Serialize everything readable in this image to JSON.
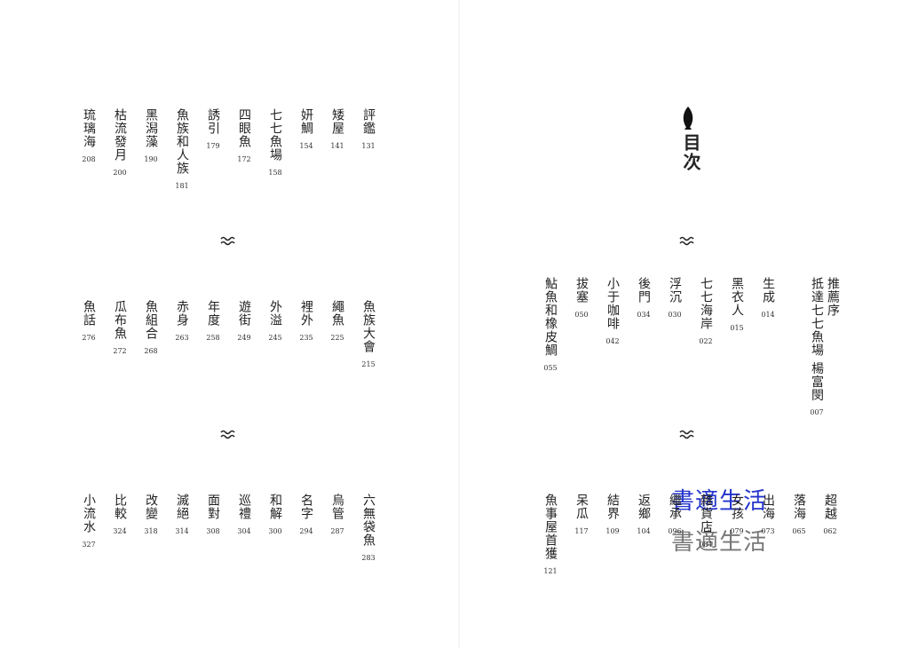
{
  "header": {
    "title": "目次"
  },
  "watermark": [
    "書適生活",
    "書適生活"
  ],
  "sections": [
    {
      "entries": [
        {
          "label": "推薦序",
          "title": "抵達七七魚場 楊富閔",
          "page": "007"
        },
        {
          "title": "生成",
          "page": "014"
        },
        {
          "title": "黑衣人",
          "page": "015"
        },
        {
          "title": "七七海岸",
          "page": "022"
        },
        {
          "title": "浮沉",
          "page": "030"
        },
        {
          "title": "後門",
          "page": "034"
        },
        {
          "title": "小于咖啡",
          "page": "042"
        },
        {
          "title": "拔塞",
          "page": "050"
        },
        {
          "title": "鮎魚和橡皮鯛",
          "page": "055"
        }
      ]
    },
    {
      "entries": [
        {
          "title": "超越",
          "page": "062"
        },
        {
          "title": "落海",
          "page": "065"
        },
        {
          "title": "出海",
          "page": "073"
        },
        {
          "title": "女孩",
          "page": "079"
        },
        {
          "title": "雜貨店",
          "page": "084"
        },
        {
          "title": "繼承",
          "page": "096"
        },
        {
          "title": "返鄉",
          "page": "104"
        },
        {
          "title": "結界",
          "page": "109"
        },
        {
          "title": "呆瓜",
          "page": "117"
        },
        {
          "title": "魚事屋首獲",
          "page": "121"
        }
      ]
    },
    {
      "entries": [
        {
          "title": "評鑑",
          "page": "131"
        },
        {
          "title": "矮屋",
          "page": "141"
        },
        {
          "title": "妍鯛",
          "page": "154"
        },
        {
          "title": "七七魚場",
          "page": "158"
        },
        {
          "title": "四眼魚",
          "page": "172"
        },
        {
          "title": "誘引",
          "page": "179"
        },
        {
          "title": "魚族和人族",
          "page": "181"
        },
        {
          "title": "黑潟藻",
          "page": "190"
        },
        {
          "title": "枯流發月",
          "page": "200"
        },
        {
          "title": "琉璃海",
          "page": "208"
        }
      ]
    },
    {
      "entries": [
        {
          "title": "魚族大會",
          "page": "215"
        },
        {
          "title": "繩魚",
          "page": "225"
        },
        {
          "title": "裡外",
          "page": "235"
        },
        {
          "title": "外溢",
          "page": "245"
        },
        {
          "title": "遊街",
          "page": "249"
        },
        {
          "title": "年度",
          "page": "258"
        },
        {
          "title": "赤身",
          "page": "263"
        },
        {
          "title": "魚組合",
          "page": "268"
        },
        {
          "title": "瓜布魚",
          "page": "272"
        },
        {
          "title": "魚話",
          "page": "276"
        }
      ]
    },
    {
      "entries": [
        {
          "title": "六無袋魚",
          "page": "283"
        },
        {
          "title": "烏管",
          "page": "287"
        },
        {
          "title": "名字",
          "page": "294"
        },
        {
          "title": "和解",
          "page": "300"
        },
        {
          "title": "巡禮",
          "page": "304"
        },
        {
          "title": "面對",
          "page": "308"
        },
        {
          "title": "滅絕",
          "page": "314"
        },
        {
          "title": "改變",
          "page": "318"
        },
        {
          "title": "比較",
          "page": "324"
        },
        {
          "title": "小流水",
          "page": "327"
        }
      ]
    }
  ]
}
